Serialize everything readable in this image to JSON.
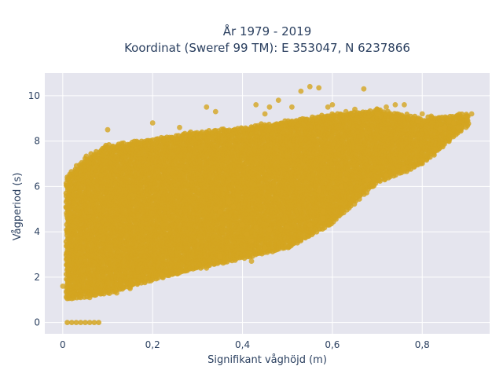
{
  "chart_data": {
    "type": "scatter",
    "title_line1": "År 1979 - 2019",
    "title_line2": "Koordinat (Sweref 99 TM): E 353047, N 6237866",
    "xlabel": "Signifikant våghöjd (m)",
    "ylabel": "Vågperiod (s)",
    "xlim": [
      -0.04,
      0.95
    ],
    "ylim": [
      -0.5,
      11
    ],
    "x_ticks": [
      0,
      0.2,
      0.4,
      0.6,
      0.8
    ],
    "x_tick_labels": [
      "0",
      "0,2",
      "0,4",
      "0,6",
      "0,8"
    ],
    "y_ticks": [
      0,
      2,
      4,
      6,
      8,
      10
    ],
    "y_tick_labels": [
      "0",
      "2",
      "4",
      "6",
      "8",
      "10"
    ],
    "grid": true,
    "marker_color": "#d4a520",
    "plot_background": "#e5e5ee",
    "series": [
      {
        "lower_boundary": [
          [
            0.01,
            1.05
          ],
          [
            0.1,
            1.3
          ],
          [
            0.2,
            1.9
          ],
          [
            0.3,
            2.4
          ],
          [
            0.4,
            2.85
          ],
          [
            0.5,
            3.3
          ],
          [
            0.6,
            4.4
          ],
          [
            0.7,
            6.2
          ],
          [
            0.8,
            7.0
          ],
          [
            0.9,
            8.7
          ]
        ],
        "upper_boundary": [
          [
            0.01,
            6.5
          ],
          [
            0.05,
            7.3
          ],
          [
            0.1,
            7.8
          ],
          [
            0.2,
            8.1
          ],
          [
            0.3,
            8.4
          ],
          [
            0.4,
            8.6
          ],
          [
            0.5,
            8.9
          ],
          [
            0.6,
            9.2
          ],
          [
            0.7,
            9.4
          ],
          [
            0.8,
            9.0
          ],
          [
            0.9,
            9.2
          ]
        ],
        "outliers": [
          [
            0.0,
            1.6
          ],
          [
            0.1,
            8.5
          ],
          [
            0.2,
            8.8
          ],
          [
            0.26,
            8.6
          ],
          [
            0.32,
            9.5
          ],
          [
            0.34,
            9.3
          ],
          [
            0.43,
            9.6
          ],
          [
            0.45,
            9.2
          ],
          [
            0.46,
            9.5
          ],
          [
            0.48,
            9.8
          ],
          [
            0.51,
            9.5
          ],
          [
            0.53,
            10.2
          ],
          [
            0.55,
            10.4
          ],
          [
            0.57,
            10.35
          ],
          [
            0.59,
            9.5
          ],
          [
            0.6,
            9.6
          ],
          [
            0.63,
            9.3
          ],
          [
            0.65,
            9.4
          ],
          [
            0.67,
            10.3
          ],
          [
            0.7,
            9.2
          ],
          [
            0.72,
            9.5
          ],
          [
            0.74,
            9.6
          ],
          [
            0.76,
            9.6
          ],
          [
            0.78,
            9.0
          ],
          [
            0.79,
            8.9
          ],
          [
            0.8,
            9.2
          ],
          [
            0.82,
            9.1
          ],
          [
            0.84,
            8.5
          ],
          [
            0.85,
            8.6
          ],
          [
            0.86,
            8.9
          ],
          [
            0.87,
            8.8
          ],
          [
            0.9,
            9.1
          ],
          [
            0.91,
            9.2
          ],
          [
            0.34,
            5.0
          ],
          [
            0.35,
            4.9
          ],
          [
            0.37,
            5.3
          ],
          [
            0.38,
            5.1
          ],
          [
            0.4,
            4.3
          ],
          [
            0.41,
            3.9
          ],
          [
            0.42,
            3.6
          ],
          [
            0.43,
            4.2
          ],
          [
            0.46,
            4.1
          ],
          [
            0.5,
            4.2
          ],
          [
            0.55,
            4.3
          ],
          [
            0.58,
            4.6
          ],
          [
            0.57,
            5.8
          ],
          [
            0.58,
            4.9
          ],
          [
            0.63,
            6.3
          ],
          [
            0.62,
            6.0
          ],
          [
            0.68,
            6.3
          ],
          [
            0.69,
            6.0
          ],
          [
            0.72,
            6.5
          ],
          [
            0.76,
            6.8
          ],
          [
            0.8,
            7.1
          ],
          [
            0.83,
            7.6
          ],
          [
            0.88,
            8.6
          ],
          [
            0.42,
            2.7
          ],
          [
            0.45,
            3.3
          ],
          [
            0.32,
            2.4
          ],
          [
            0.35,
            2.9
          ],
          [
            0.26,
            2.2
          ],
          [
            0.22,
            2.1
          ],
          [
            0.15,
            1.5
          ],
          [
            0.12,
            1.3
          ],
          [
            0.06,
            1.1
          ],
          [
            0.04,
            1.1
          ]
        ],
        "zero_points_x": [
          0.01,
          0.02,
          0.03,
          0.04,
          0.05,
          0.06,
          0.07,
          0.08
        ]
      }
    ]
  }
}
